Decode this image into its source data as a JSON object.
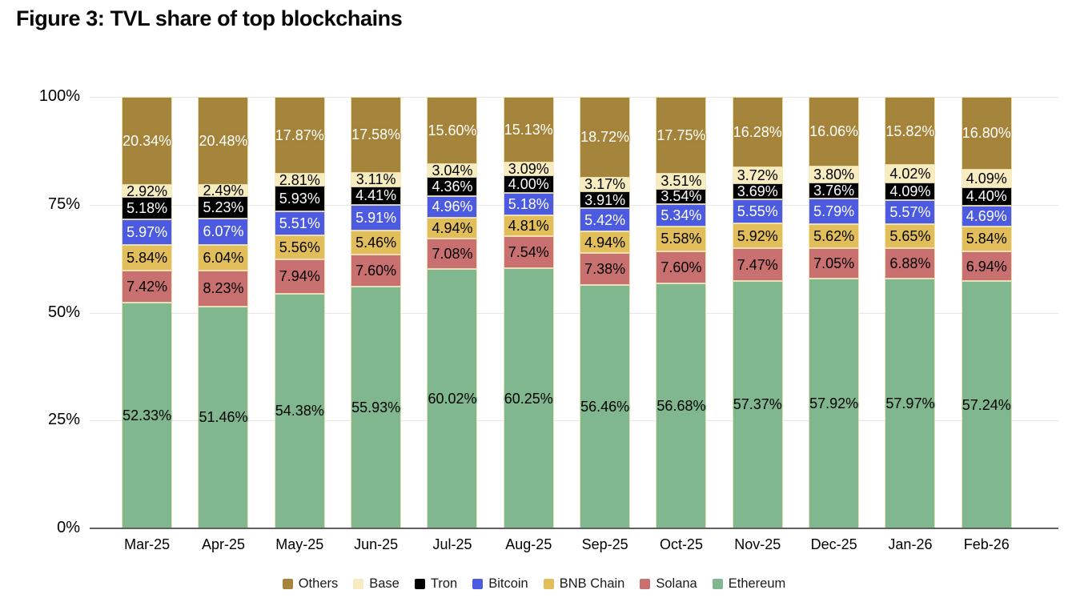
{
  "figure": {
    "title": "Figure 3: TVL share of top blockchains"
  },
  "chart_data": {
    "type": "bar",
    "stacked": true,
    "title": "Figure 3: TVL share of top blockchains",
    "xlabel": "",
    "ylabel": "",
    "ylim": [
      0,
      100
    ],
    "yticks": [
      0,
      25,
      50,
      75,
      100
    ],
    "ytick_labels": [
      "0%",
      "25%",
      "50%",
      "75%",
      "100%"
    ],
    "grid": "horizontal",
    "legend_position": "bottom",
    "value_label_format": "0.00%",
    "categories": [
      "Mar-25",
      "Apr-25",
      "May-25",
      "Jun-25",
      "Jul-25",
      "Aug-25",
      "Sep-25",
      "Oct-25",
      "Nov-25",
      "Dec-25",
      "Jan-26",
      "Feb-26"
    ],
    "series": [
      {
        "name": "Others",
        "color": "#A5843B",
        "label_color": "#FFFFFF",
        "values": [
          20.34,
          20.48,
          17.87,
          17.58,
          15.6,
          15.13,
          18.72,
          17.75,
          16.28,
          16.06,
          15.82,
          16.8
        ]
      },
      {
        "name": "Base",
        "color": "#F6ECC0",
        "label_color": "#000000",
        "values": [
          2.92,
          2.49,
          2.81,
          3.11,
          3.04,
          3.09,
          3.17,
          3.51,
          3.72,
          3.8,
          4.02,
          4.09
        ]
      },
      {
        "name": "Tron",
        "color": "#000000",
        "label_color": "#FFFFFF",
        "values": [
          5.18,
          5.23,
          5.93,
          4.41,
          4.36,
          4.0,
          3.91,
          3.54,
          3.69,
          3.76,
          4.09,
          4.4
        ]
      },
      {
        "name": "Bitcoin",
        "color": "#4C5BE0",
        "label_color": "#FFFFFF",
        "values": [
          5.97,
          6.07,
          5.51,
          5.91,
          4.96,
          5.18,
          5.42,
          5.34,
          5.55,
          5.79,
          5.57,
          4.69
        ]
      },
      {
        "name": "BNB Chain",
        "color": "#E2BE5B",
        "label_color": "#000000",
        "values": [
          5.84,
          6.04,
          5.56,
          5.46,
          4.94,
          4.81,
          4.94,
          5.58,
          5.92,
          5.62,
          5.65,
          5.84
        ]
      },
      {
        "name": "Solana",
        "color": "#C97070",
        "label_color": "#000000",
        "values": [
          7.42,
          8.23,
          7.94,
          7.6,
          7.08,
          7.54,
          7.38,
          7.6,
          7.47,
          7.05,
          6.88,
          6.94
        ]
      },
      {
        "name": "Ethereum",
        "color": "#81B78F",
        "label_color": "#000000",
        "values": [
          52.33,
          51.46,
          54.38,
          55.93,
          60.02,
          60.25,
          56.46,
          56.68,
          57.37,
          57.92,
          57.97,
          57.24
        ]
      }
    ]
  }
}
